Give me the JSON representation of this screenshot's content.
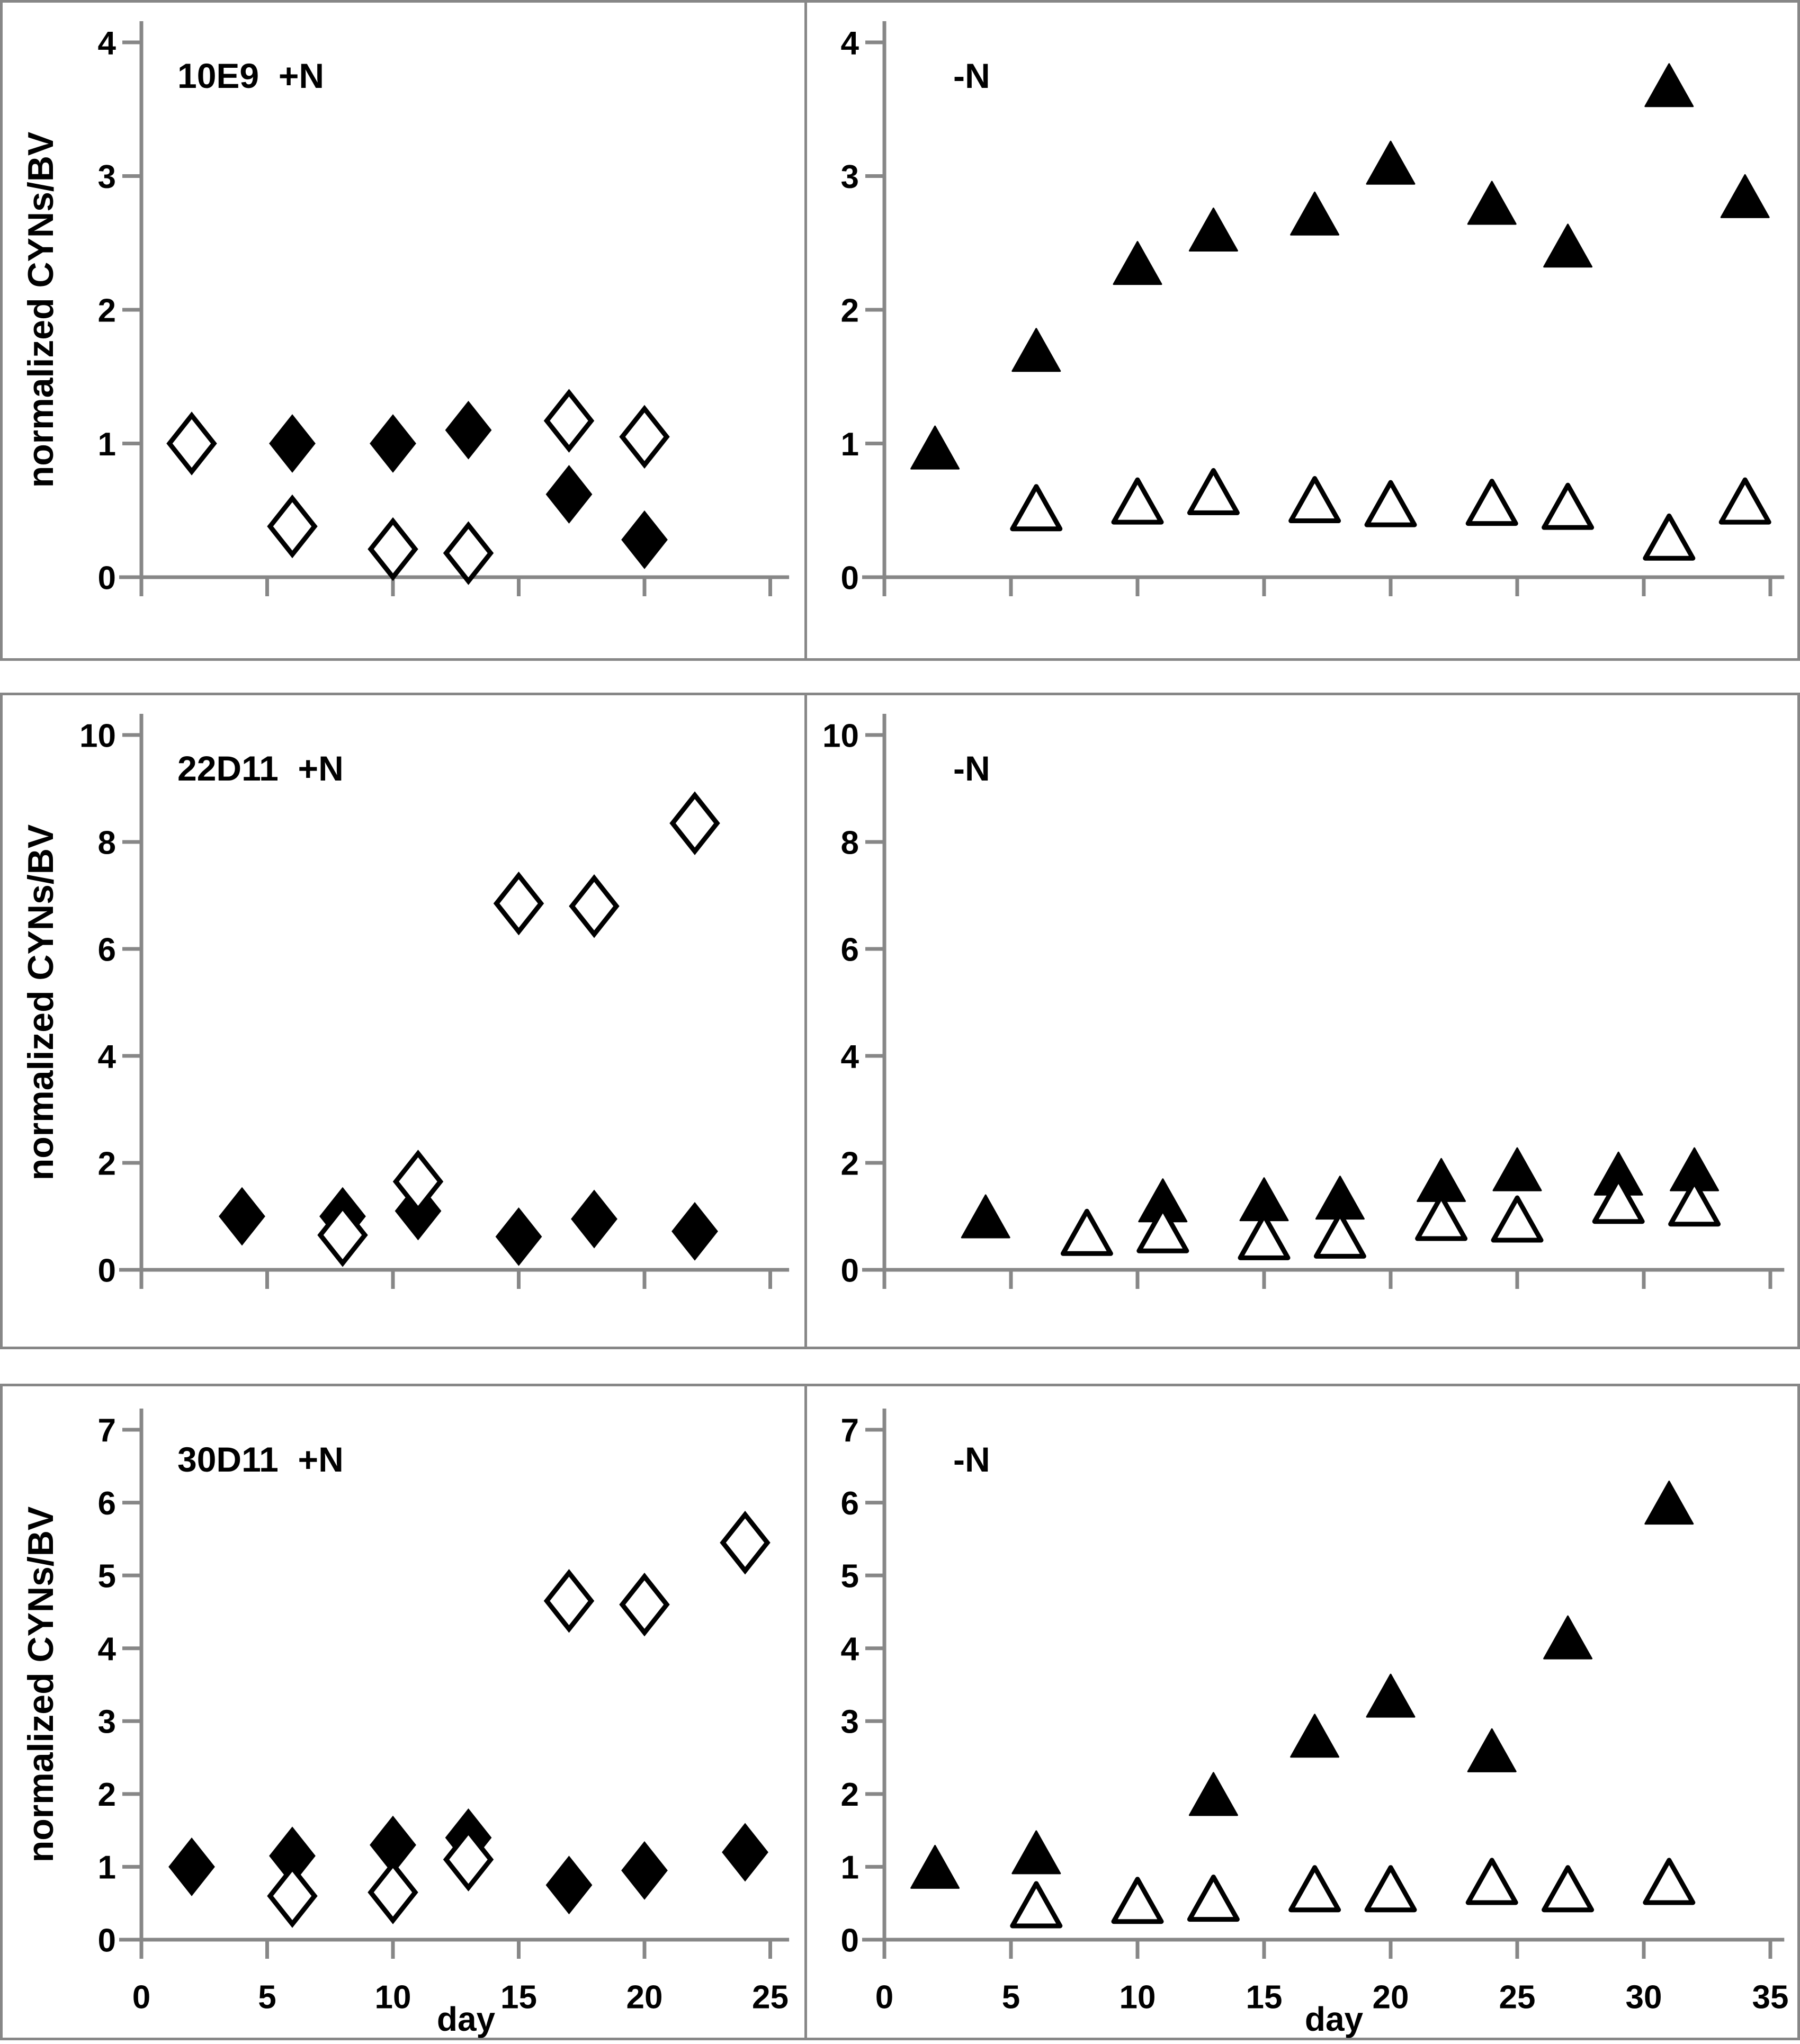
{
  "figure": {
    "ylabel": "normalized CYNs/BV",
    "xlabel": "day",
    "colors": {
      "axis": "#878787",
      "panel_border": "#878787",
      "marker": "#000000",
      "background": "#ffffff",
      "text": "#000000"
    }
  },
  "chart_data": [
    {
      "type": "scatter",
      "panel": "top-left",
      "row": 0,
      "col": "left",
      "title": "10E9  +N",
      "xlim": [
        0,
        25
      ],
      "ylim": [
        0,
        4
      ],
      "xticks": [
        0,
        5,
        10,
        15,
        20,
        25
      ],
      "yticks": [
        0,
        1,
        2,
        3,
        4
      ],
      "x_tick_labels_visible": false,
      "grid": false,
      "legend": "none",
      "series": [
        {
          "name": "filled-diamond",
          "marker": "diamond",
          "fill": "filled",
          "points": [
            [
              6,
              1.0
            ],
            [
              10,
              1.0
            ],
            [
              13,
              1.1
            ],
            [
              17,
              0.62
            ],
            [
              20,
              0.28
            ]
          ]
        },
        {
          "name": "open-diamond",
          "marker": "diamond",
          "fill": "open",
          "points": [
            [
              2,
              1.0
            ],
            [
              6,
              0.38
            ],
            [
              10,
              0.21
            ],
            [
              13,
              0.18
            ],
            [
              17,
              1.17
            ],
            [
              20,
              1.05
            ]
          ]
        }
      ]
    },
    {
      "type": "scatter",
      "panel": "top-right",
      "row": 0,
      "col": "right",
      "title": "-N",
      "xlim": [
        0,
        35
      ],
      "ylim": [
        0,
        4
      ],
      "xticks": [
        0,
        5,
        10,
        15,
        20,
        25,
        30,
        35
      ],
      "yticks": [
        0,
        1,
        2,
        3,
        4
      ],
      "x_tick_labels_visible": false,
      "grid": false,
      "legend": "none",
      "series": [
        {
          "name": "filled-triangle",
          "marker": "triangle",
          "fill": "filled",
          "points": [
            [
              2,
              0.97
            ],
            [
              6,
              1.7
            ],
            [
              10,
              2.35
            ],
            [
              13,
              2.6
            ],
            [
              17,
              2.72
            ],
            [
              20,
              3.1
            ],
            [
              24,
              2.8
            ],
            [
              27,
              2.48
            ],
            [
              31,
              3.68
            ],
            [
              34,
              2.85
            ]
          ]
        },
        {
          "name": "open-triangle",
          "marker": "triangle",
          "fill": "open",
          "points": [
            [
              6,
              0.52
            ],
            [
              10,
              0.57
            ],
            [
              13,
              0.64
            ],
            [
              17,
              0.58
            ],
            [
              20,
              0.55
            ],
            [
              24,
              0.56
            ],
            [
              27,
              0.53
            ],
            [
              31,
              0.3
            ],
            [
              34,
              0.57
            ]
          ]
        }
      ]
    },
    {
      "type": "scatter",
      "panel": "middle-left",
      "row": 1,
      "col": "left",
      "title": "22D11  +N",
      "xlim": [
        0,
        25
      ],
      "ylim": [
        0,
        10
      ],
      "xticks": [
        0,
        5,
        10,
        15,
        20,
        25
      ],
      "yticks": [
        0,
        2,
        4,
        6,
        8,
        10
      ],
      "x_tick_labels_visible": false,
      "grid": false,
      "legend": "none",
      "series": [
        {
          "name": "filled-diamond",
          "marker": "diamond",
          "fill": "filled",
          "points": [
            [
              4,
              1.0
            ],
            [
              8,
              1.0
            ],
            [
              11,
              1.1
            ],
            [
              15,
              0.62
            ],
            [
              18,
              0.95
            ],
            [
              22,
              0.72
            ]
          ]
        },
        {
          "name": "open-diamond",
          "marker": "diamond",
          "fill": "open",
          "points": [
            [
              8,
              0.65
            ],
            [
              11,
              1.65
            ],
            [
              15,
              6.85
            ],
            [
              18,
              6.8
            ],
            [
              22,
              8.35
            ]
          ]
        }
      ]
    },
    {
      "type": "scatter",
      "panel": "middle-right",
      "row": 1,
      "col": "right",
      "title": "-N",
      "xlim": [
        0,
        35
      ],
      "ylim": [
        0,
        10
      ],
      "xticks": [
        0,
        5,
        10,
        15,
        20,
        25,
        30,
        35
      ],
      "yticks": [
        0,
        2,
        4,
        6,
        8,
        10
      ],
      "x_tick_labels_visible": false,
      "grid": false,
      "legend": "none",
      "series": [
        {
          "name": "filled-triangle",
          "marker": "triangle",
          "fill": "filled",
          "points": [
            [
              4,
              1.0
            ],
            [
              11,
              1.3
            ],
            [
              15,
              1.32
            ],
            [
              18,
              1.35
            ],
            [
              22,
              1.68
            ],
            [
              25,
              1.88
            ],
            [
              29,
              1.8
            ],
            [
              32,
              1.88
            ]
          ]
        },
        {
          "name": "open-triangle",
          "marker": "triangle",
          "fill": "open",
          "points": [
            [
              8,
              0.7
            ],
            [
              11,
              0.75
            ],
            [
              15,
              0.62
            ],
            [
              18,
              0.65
            ],
            [
              22,
              0.98
            ],
            [
              25,
              0.95
            ],
            [
              29,
              1.3
            ],
            [
              32,
              1.25
            ]
          ]
        }
      ]
    },
    {
      "type": "scatter",
      "panel": "bottom-left",
      "row": 2,
      "col": "left",
      "title": "30D11  +N",
      "xlim": [
        0,
        25
      ],
      "ylim": [
        0,
        7
      ],
      "xticks": [
        0,
        5,
        10,
        15,
        20,
        25
      ],
      "yticks": [
        0,
        1,
        2,
        3,
        4,
        5,
        6,
        7
      ],
      "x_tick_labels_visible": true,
      "grid": false,
      "legend": "none",
      "series": [
        {
          "name": "filled-diamond",
          "marker": "diamond",
          "fill": "filled",
          "points": [
            [
              2,
              1.0
            ],
            [
              6,
              1.15
            ],
            [
              10,
              1.3
            ],
            [
              13,
              1.4
            ],
            [
              17,
              0.75
            ],
            [
              20,
              0.95
            ],
            [
              24,
              1.2
            ]
          ]
        },
        {
          "name": "open-diamond",
          "marker": "diamond",
          "fill": "open",
          "points": [
            [
              6,
              0.6
            ],
            [
              10,
              0.65
            ],
            [
              13,
              1.1
            ],
            [
              17,
              4.65
            ],
            [
              20,
              4.6
            ],
            [
              24,
              5.45
            ]
          ]
        }
      ]
    },
    {
      "type": "scatter",
      "panel": "bottom-right",
      "row": 2,
      "col": "right",
      "title": "-N",
      "xlim": [
        0,
        35
      ],
      "ylim": [
        0,
        7
      ],
      "xticks": [
        0,
        5,
        10,
        15,
        20,
        25,
        30,
        35
      ],
      "yticks": [
        0,
        1,
        2,
        3,
        4,
        5,
        6,
        7
      ],
      "x_tick_labels_visible": true,
      "grid": false,
      "legend": "none",
      "series": [
        {
          "name": "filled-triangle",
          "marker": "triangle",
          "fill": "filled",
          "points": [
            [
              2,
              1.0
            ],
            [
              6,
              1.2
            ],
            [
              13,
              2.0
            ],
            [
              17,
              2.8
            ],
            [
              20,
              3.35
            ],
            [
              24,
              2.6
            ],
            [
              27,
              4.15
            ],
            [
              31,
              6.0
            ]
          ]
        },
        {
          "name": "open-triangle",
          "marker": "triangle",
          "fill": "open",
          "points": [
            [
              6,
              0.48
            ],
            [
              10,
              0.54
            ],
            [
              13,
              0.57
            ],
            [
              17,
              0.7
            ],
            [
              20,
              0.7
            ],
            [
              24,
              0.8
            ],
            [
              27,
              0.7
            ],
            [
              31,
              0.8
            ]
          ]
        }
      ]
    }
  ]
}
